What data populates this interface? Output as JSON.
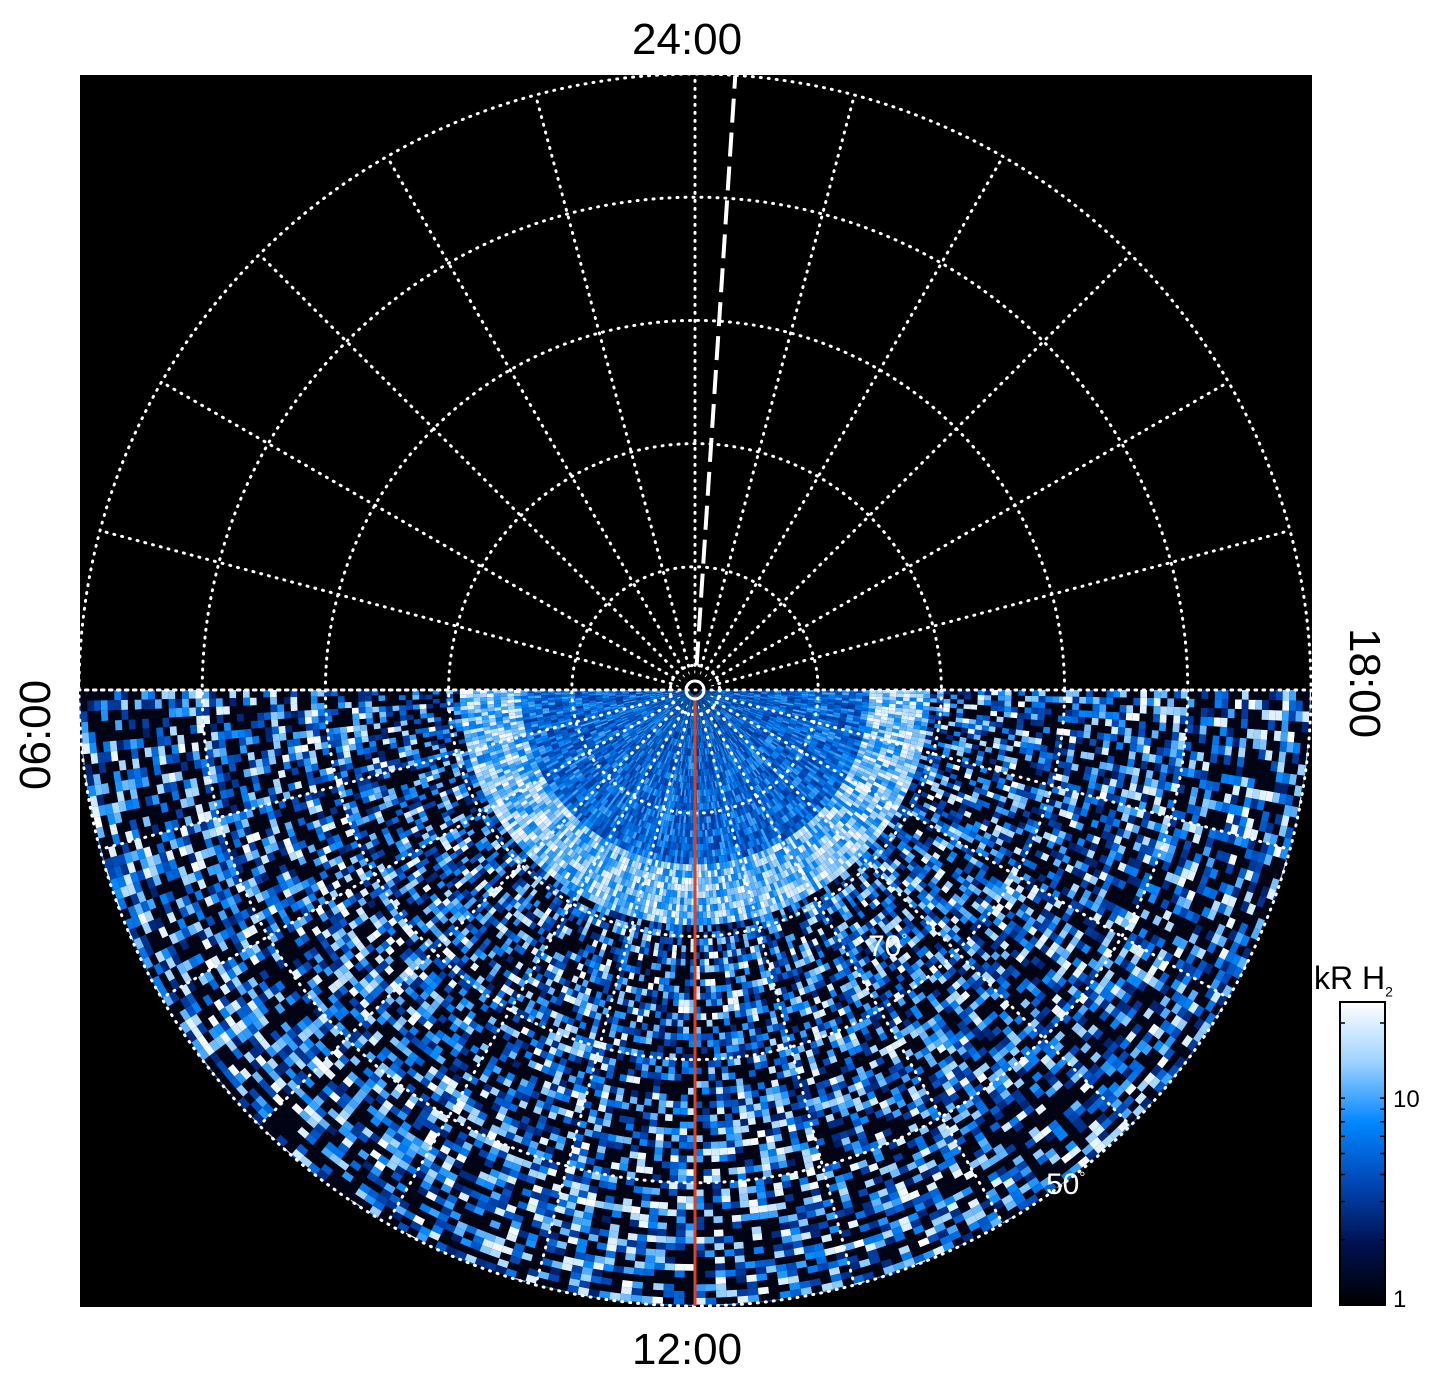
{
  "chart_data": {
    "type": "heatmap",
    "projection": "polar",
    "local_time_labels": {
      "top": "24:00",
      "bottom": "12:00",
      "left": "06:00",
      "right": "18:00"
    },
    "latitude_labels": [
      {
        "value": "70",
        "unit": "°"
      },
      {
        "value": "50",
        "unit": "°"
      }
    ],
    "latitude_circles_deg": [
      88,
      80,
      70,
      60,
      50,
      40
    ],
    "meridian_step_hours": 1,
    "grid": "dotted",
    "colorbar": {
      "title": "kR H",
      "title_subscript": "2",
      "scale": "log",
      "range": [
        1,
        25
      ],
      "ticks": [
        "1",
        "10"
      ],
      "colormap": [
        "#000000",
        "#00114f",
        "#0046b4",
        "#0086ff",
        "#9cd2ff",
        "#ffffff"
      ]
    },
    "colors": {
      "background": "#000000",
      "noon_meridian": "#e0401a",
      "grid": "#ffffff"
    },
    "data_coverage": "dayside hemisphere only (06:00 through 12:00 to 18:00); nightside has no data",
    "auroral_oval_latitude_deg": 74,
    "reference_meridian_hours": [
      12
    ],
    "dashed_meridian_local_time": "23:45"
  }
}
